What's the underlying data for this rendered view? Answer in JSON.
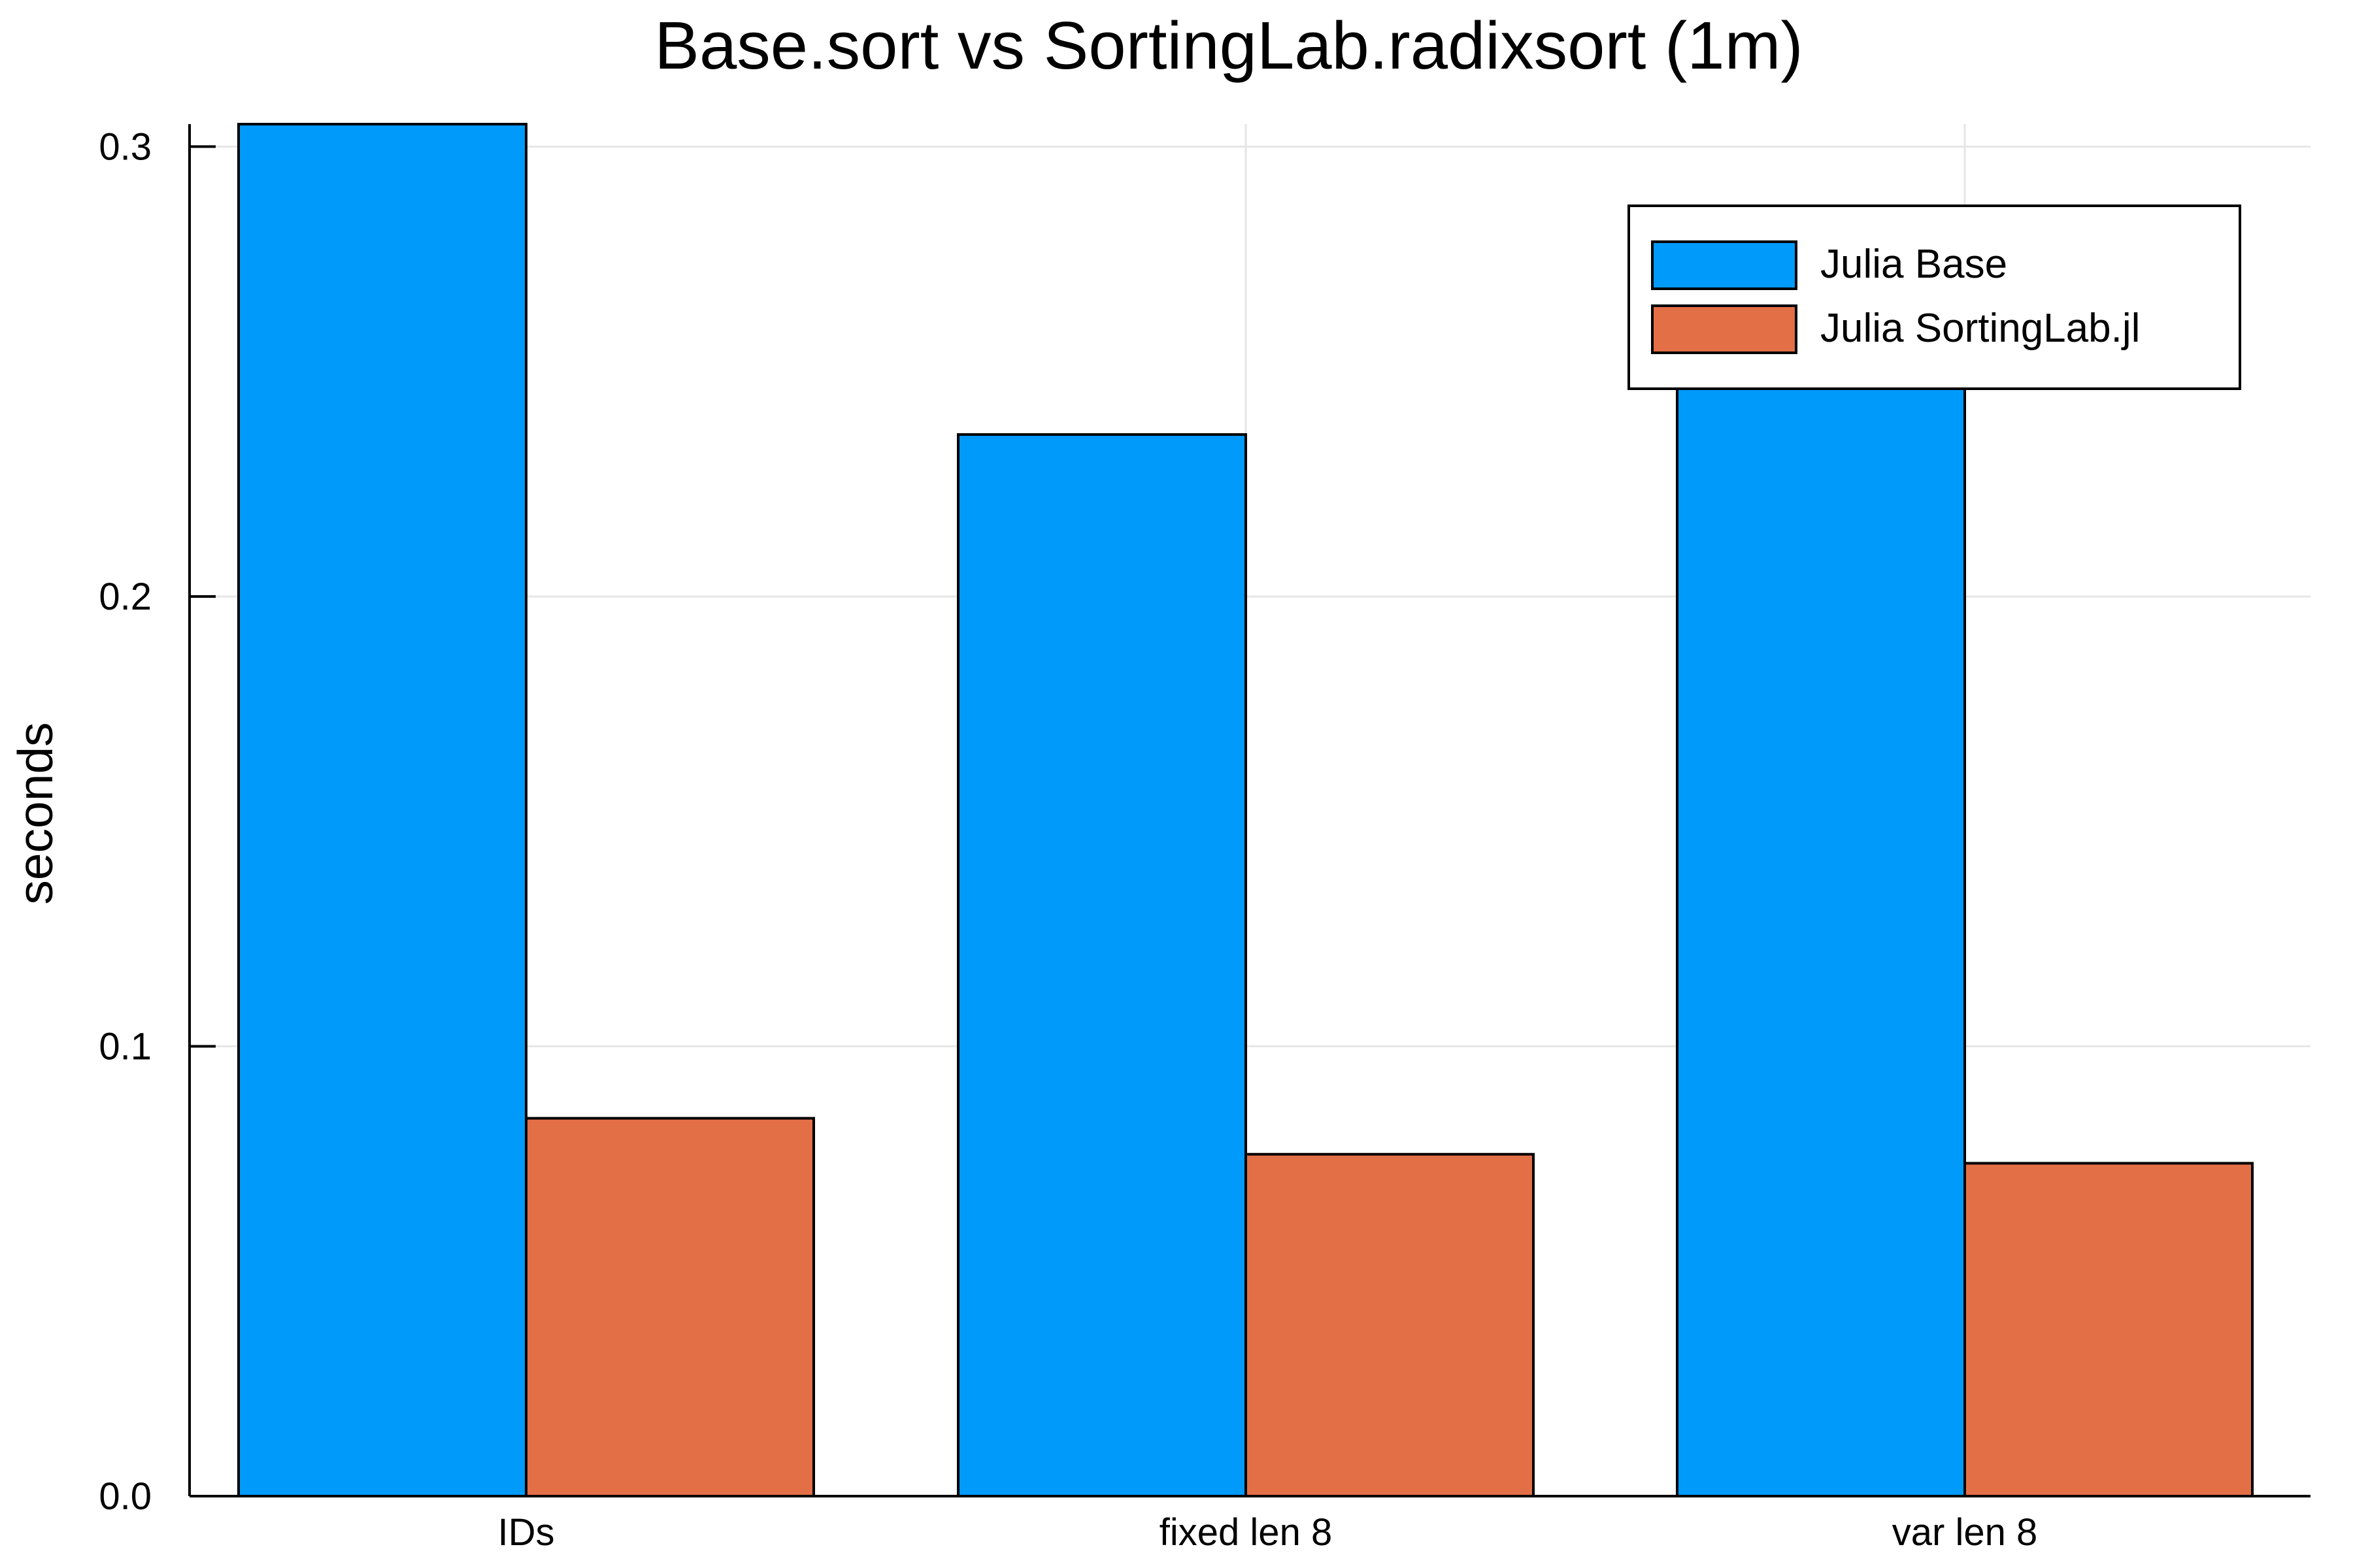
{
  "chart_data": {
    "type": "bar",
    "title": "Base.sort vs SortingLab.radixsort (1m)",
    "xlabel": "",
    "ylabel": "seconds",
    "categories": [
      "IDs",
      "fixed len 8",
      "var len 8"
    ],
    "series": [
      {
        "name": "Julia Base",
        "color": "#009AFA",
        "values": [
          0.305,
          0.236,
          0.255
        ]
      },
      {
        "name": "Julia SortingLab.jl",
        "color": "#E36F47",
        "values": [
          0.084,
          0.076,
          0.074
        ]
      }
    ],
    "ylim": [
      0,
      0.305
    ],
    "yticks": [
      0.0,
      0.1,
      0.2,
      0.3
    ],
    "ytick_labels": [
      "0.0",
      "0.1",
      "0.2",
      "0.3"
    ],
    "grid": true,
    "legend": "top-right"
  }
}
